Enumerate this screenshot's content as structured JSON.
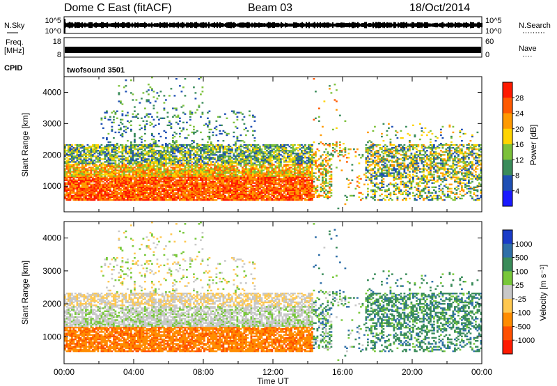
{
  "header": {
    "station": "Dome C East (fitACF)",
    "beam": "Beam 03",
    "date": "18/Oct/2014"
  },
  "noise_panel": {
    "left_label": "N.Sky",
    "left_top_tick": "10^5",
    "left_bottom_tick": "10^0",
    "right_top_tick": "10^5",
    "right_bottom_tick": "10^0",
    "right_label": "N.Search",
    "right_label_dots": "·········"
  },
  "freq_panel": {
    "left_label_1": "Freq.",
    "left_label_2": "[MHz]",
    "left_top_tick": "18",
    "left_bottom_tick": "8",
    "right_top_tick": "60",
    "right_bottom_tick": "0",
    "right_label": "Nave",
    "right_label_dots": "····"
  },
  "cpid": {
    "label": "CPID",
    "program": "twofsound 3501"
  },
  "chart_data": [
    {
      "type": "heatmap",
      "name": "power",
      "ylabel": "Slant Range [km]",
      "ylim": [
        180,
        4500
      ],
      "yticks": [
        "1000",
        "2000",
        "3000",
        "4000"
      ],
      "colorbar_label": "Power [dB]",
      "colorbar_ticks": [
        "4",
        "8",
        "12",
        "16",
        "20",
        "24",
        "28"
      ],
      "colorbar_range": [
        0,
        32
      ],
      "colors": [
        "#1a1aff",
        "#1e4fb4",
        "#3a8c5a",
        "#7cc13a",
        "#ffd400",
        "#ff9a00",
        "#ff5a00",
        "#ff1a00"
      ]
    },
    {
      "type": "heatmap",
      "name": "velocity",
      "ylabel": "Slant Range [km]",
      "ylim": [
        180,
        4500
      ],
      "yticks": [
        "1000",
        "2000",
        "3000",
        "4000"
      ],
      "colorbar_label": "Velocity [m s⁻¹]",
      "colorbar_ticks": [
        "1000",
        "500",
        "100",
        "25",
        "-25",
        "-100",
        "-500",
        "-1000"
      ],
      "colors": [
        "#1a3cc8",
        "#2f6fa8",
        "#3a8c5a",
        "#78c83a",
        "#c8c8c8",
        "#ffc850",
        "#ff8c00",
        "#ff5000",
        "#ff1a00"
      ]
    }
  ],
  "time_axis": {
    "xlabel": "Time UT",
    "ticks": [
      "00:00",
      "04:00",
      "08:00",
      "12:00",
      "16:00",
      "20:00",
      "00:00"
    ],
    "xlim": [
      0,
      24
    ]
  }
}
